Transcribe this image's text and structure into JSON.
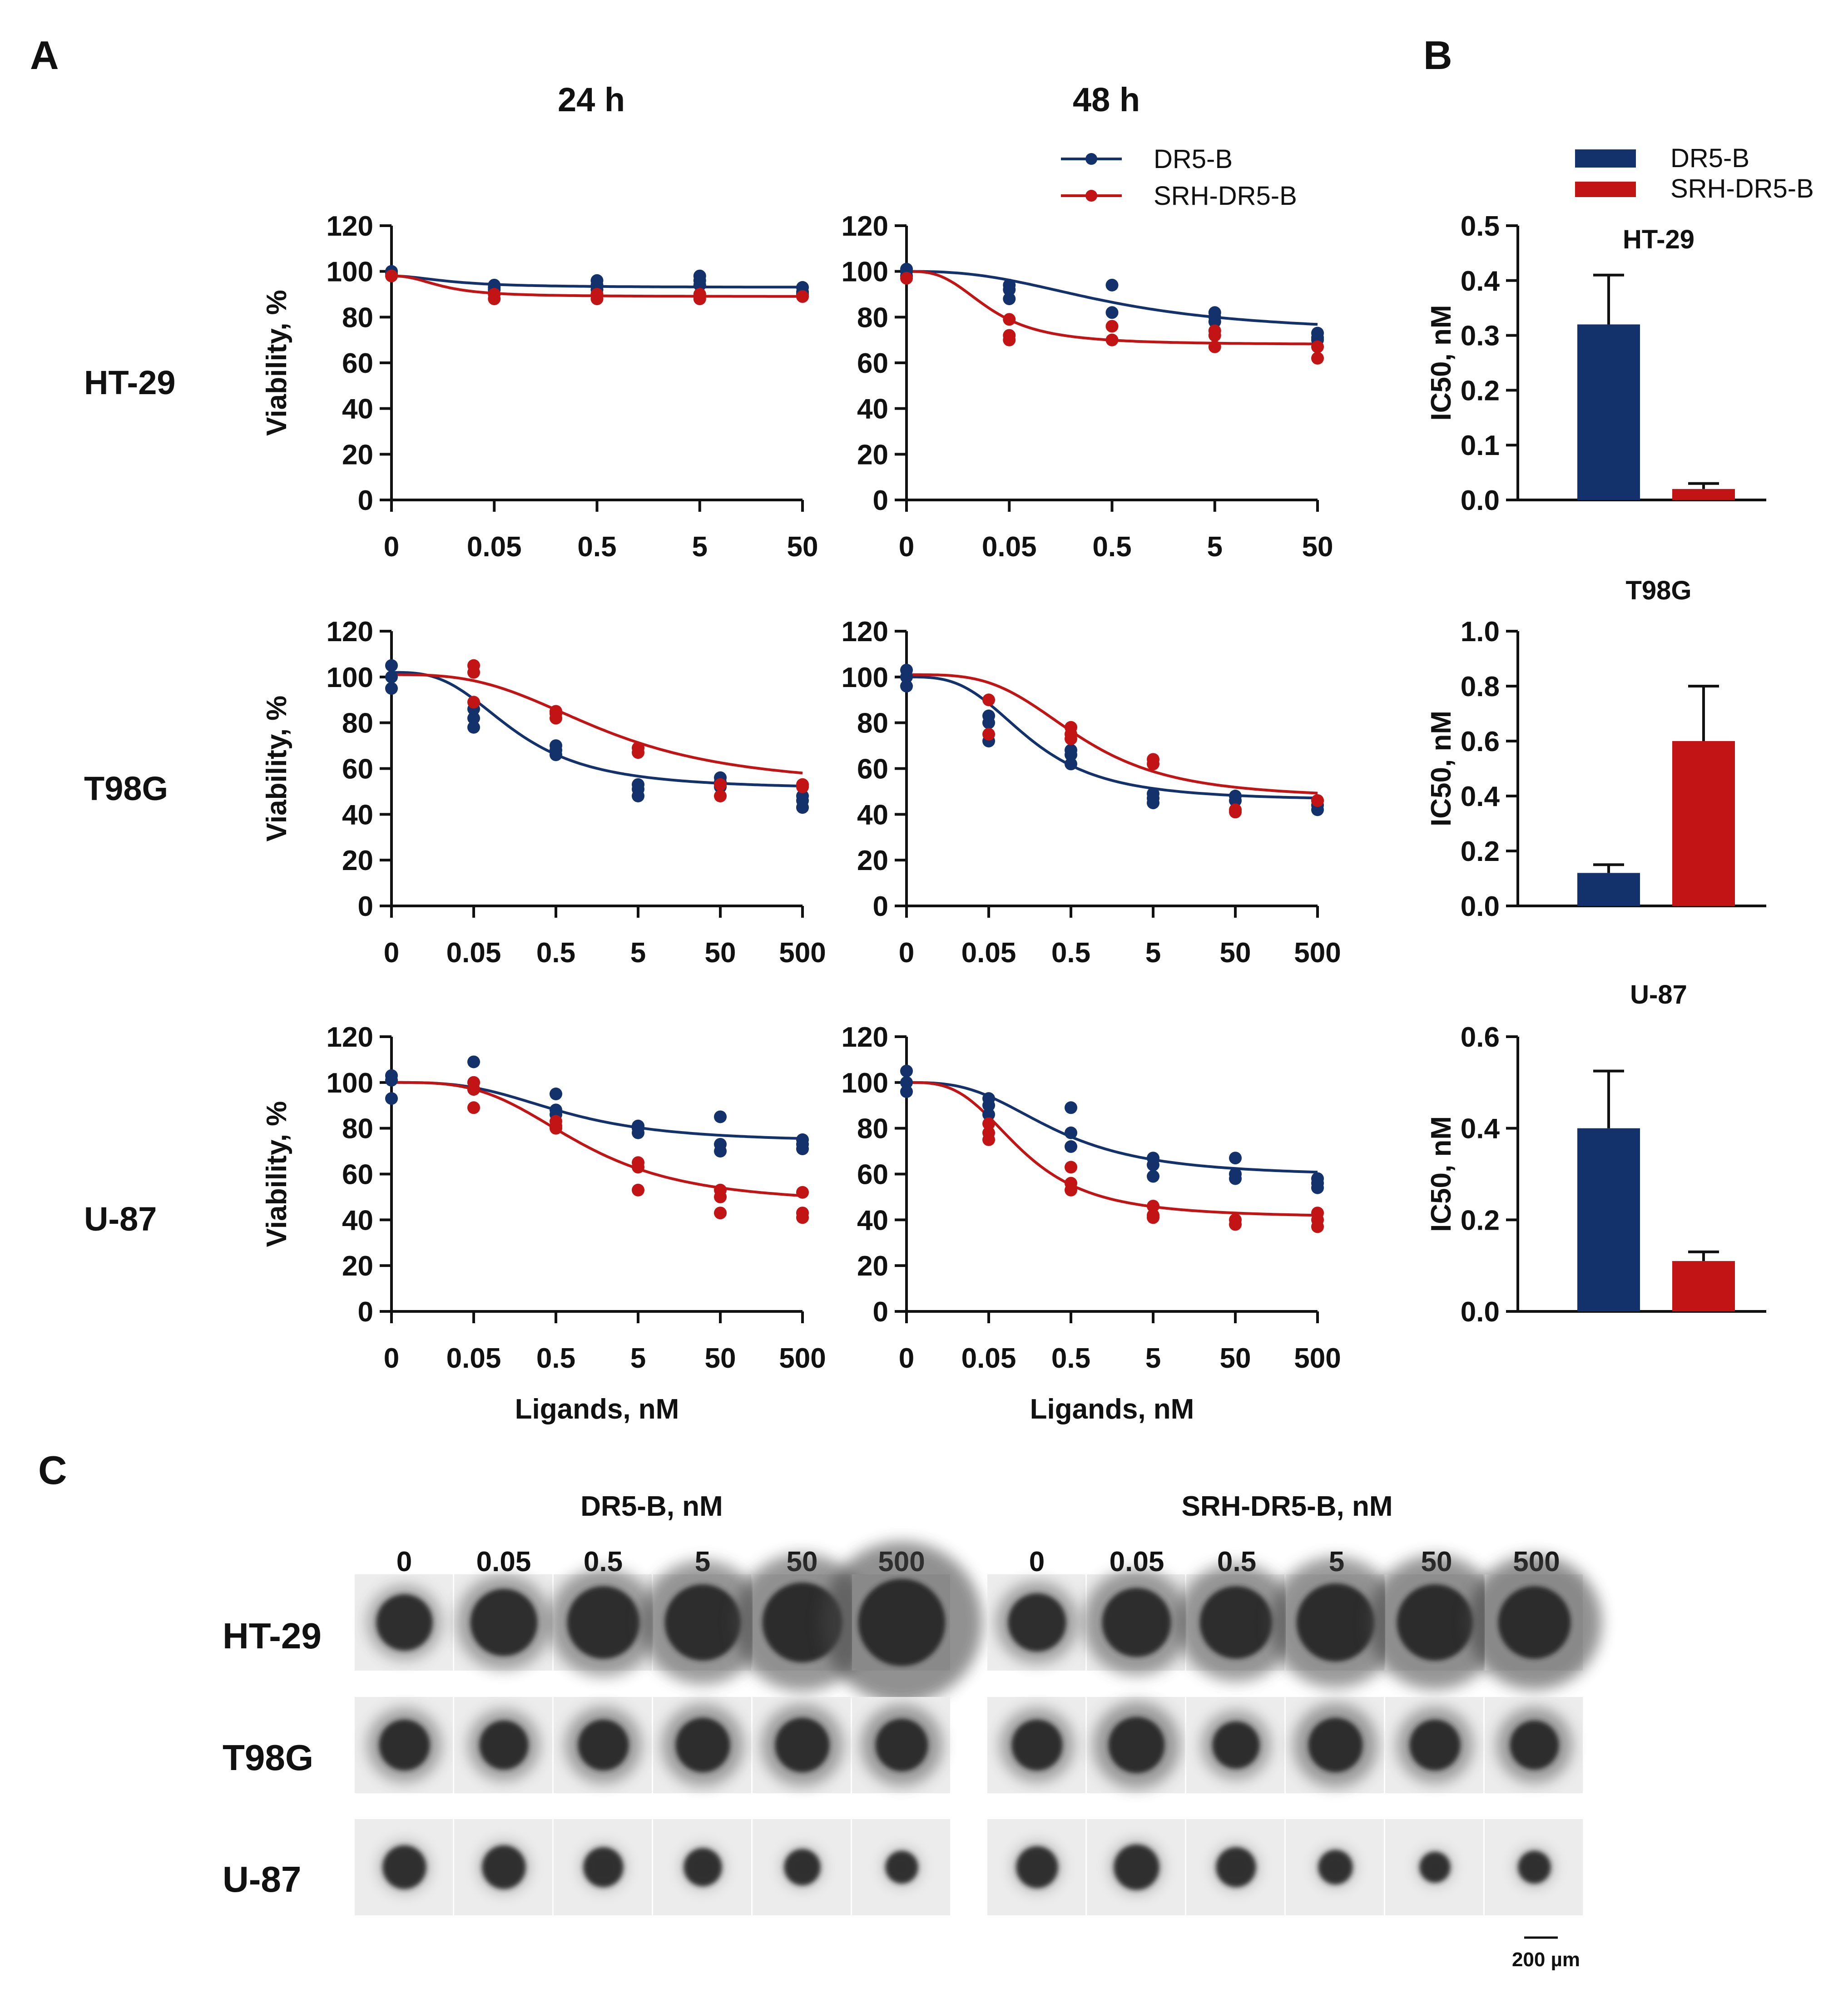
{
  "panel_labels": {
    "a": "A",
    "b": "B",
    "c": "C"
  },
  "column_titles": [
    "24 h",
    "48 h"
  ],
  "row_labels": [
    "HT-29",
    "T98G",
    "U-87"
  ],
  "legend": {
    "series": [
      "DR5-B",
      "SRH-DR5-B"
    ]
  },
  "colors": {
    "dr5b": "#13326b",
    "srh": "#c21414",
    "axis": "#111111"
  },
  "chart_data": [
    {
      "type": "scatter",
      "id": "ht29-24h",
      "cell_line": "HT-29",
      "timepoint": "24 h",
      "xlabel": "",
      "ylabel": "Viability, %",
      "ylim": [
        0,
        120
      ],
      "yticks": [
        0,
        20,
        40,
        60,
        80,
        100,
        120
      ],
      "xticks": [
        "0",
        "0.05",
        "0.5",
        "5",
        "50"
      ],
      "series": [
        {
          "name": "DR5-B",
          "points": [
            [
              0,
              100
            ],
            [
              0,
              99
            ],
            [
              1,
              94
            ],
            [
              1,
              93
            ],
            [
              1,
              92
            ],
            [
              2,
              96
            ],
            [
              2,
              94
            ],
            [
              2,
              92
            ],
            [
              3,
              98
            ],
            [
              3,
              96
            ],
            [
              3,
              94
            ],
            [
              4,
              93
            ],
            [
              4,
              91
            ],
            [
              4,
              90
            ]
          ],
          "fit": {
            "top": 98,
            "bottom": 93,
            "mid": 0.6,
            "slope": 1.0
          }
        },
        {
          "name": "SRH-DR5-B",
          "points": [
            [
              0,
              98
            ],
            [
              1,
              90
            ],
            [
              1,
              88
            ],
            [
              2,
              90
            ],
            [
              2,
              88
            ],
            [
              3,
              90
            ],
            [
              3,
              88
            ],
            [
              4,
              89
            ]
          ],
          "fit": {
            "top": 98,
            "bottom": 89,
            "mid": 0.5,
            "slope": 1.2
          }
        }
      ]
    },
    {
      "type": "scatter",
      "id": "ht29-48h",
      "cell_line": "HT-29",
      "timepoint": "48 h",
      "xlabel": "",
      "ylabel": "",
      "ylim": [
        0,
        120
      ],
      "yticks": [
        0,
        20,
        40,
        60,
        80,
        100,
        120
      ],
      "xticks": [
        "0",
        "0.05",
        "0.5",
        "5",
        "50"
      ],
      "series": [
        {
          "name": "DR5-B",
          "points": [
            [
              0,
              101
            ],
            [
              0,
              100
            ],
            [
              0,
              98
            ],
            [
              1,
              94
            ],
            [
              1,
              92
            ],
            [
              1,
              88
            ],
            [
              2,
              94
            ],
            [
              2,
              82
            ],
            [
              3,
              82
            ],
            [
              3,
              80
            ],
            [
              3,
              78
            ],
            [
              4,
              73
            ],
            [
              4,
              71
            ],
            [
              4,
              70
            ]
          ],
          "fit": {
            "top": 100,
            "bottom": 73,
            "mid": 2.0,
            "slope": 1.3
          }
        },
        {
          "name": "SRH-DR5-B",
          "points": [
            [
              0,
              97
            ],
            [
              1,
              79
            ],
            [
              1,
              72
            ],
            [
              1,
              70
            ],
            [
              2,
              76
            ],
            [
              2,
              70
            ],
            [
              3,
              74
            ],
            [
              3,
              72
            ],
            [
              3,
              67
            ],
            [
              4,
              67
            ],
            [
              4,
              62
            ]
          ],
          "fit": {
            "top": 100,
            "bottom": 68,
            "mid": 0.8,
            "slope": 1.5
          }
        }
      ]
    },
    {
      "type": "scatter",
      "id": "t98g-24h",
      "cell_line": "T98G",
      "timepoint": "24 h",
      "xlabel": "",
      "ylabel": "Viability, %",
      "ylim": [
        0,
        120
      ],
      "yticks": [
        0,
        20,
        40,
        60,
        80,
        100,
        120
      ],
      "xticks": [
        "0",
        "0.05",
        "0.5",
        "5",
        "50",
        "500"
      ],
      "series": [
        {
          "name": "DR5-B",
          "points": [
            [
              0,
              105
            ],
            [
              0,
              100
            ],
            [
              0,
              95
            ],
            [
              1,
              86
            ],
            [
              1,
              82
            ],
            [
              1,
              78
            ],
            [
              2,
              70
            ],
            [
              2,
              68
            ],
            [
              2,
              66
            ],
            [
              3,
              53
            ],
            [
              3,
              51
            ],
            [
              3,
              48
            ],
            [
              4,
              56
            ],
            [
              4,
              54
            ],
            [
              4,
              52
            ],
            [
              5,
              48
            ],
            [
              5,
              46
            ],
            [
              5,
              43
            ]
          ],
          "fit": {
            "top": 102,
            "bottom": 51,
            "mid": 1.5,
            "slope": 1.5
          }
        },
        {
          "name": "SRH-DR5-B",
          "points": [
            [
              1,
              105
            ],
            [
              1,
              102
            ],
            [
              1,
              89
            ],
            [
              2,
              85
            ],
            [
              2,
              84
            ],
            [
              2,
              82
            ],
            [
              3,
              69
            ],
            [
              3,
              67
            ],
            [
              4,
              53
            ],
            [
              4,
              48
            ],
            [
              5,
              53
            ],
            [
              5,
              52
            ]
          ],
          "fit": {
            "top": 101,
            "bottom": 52,
            "mid": 2.6,
            "slope": 1.5
          }
        }
      ]
    },
    {
      "type": "scatter",
      "id": "t98g-48h",
      "cell_line": "T98G",
      "timepoint": "48 h",
      "xlabel": "",
      "ylabel": "",
      "ylim": [
        0,
        120
      ],
      "yticks": [
        0,
        20,
        40,
        60,
        80,
        100,
        120
      ],
      "xticks": [
        "0",
        "0.05",
        "0.5",
        "5",
        "50",
        "500"
      ],
      "series": [
        {
          "name": "DR5-B",
          "points": [
            [
              0,
              103
            ],
            [
              0,
              100
            ],
            [
              0,
              96
            ],
            [
              1,
              83
            ],
            [
              1,
              80
            ],
            [
              1,
              72
            ],
            [
              2,
              68
            ],
            [
              2,
              66
            ],
            [
              2,
              62
            ],
            [
              3,
              49
            ],
            [
              3,
              47
            ],
            [
              3,
              45
            ],
            [
              4,
              48
            ],
            [
              4,
              46
            ],
            [
              5,
              46
            ],
            [
              5,
              44
            ],
            [
              5,
              42
            ]
          ],
          "fit": {
            "top": 100,
            "bottom": 46,
            "mid": 1.5,
            "slope": 1.6
          }
        },
        {
          "name": "SRH-DR5-B",
          "points": [
            [
              1,
              90
            ],
            [
              1,
              75
            ],
            [
              2,
              78
            ],
            [
              2,
              75
            ],
            [
              2,
              73
            ],
            [
              3,
              64
            ],
            [
              3,
              62
            ],
            [
              4,
              42
            ],
            [
              4,
              41
            ],
            [
              5,
              46
            ]
          ],
          "fit": {
            "top": 101,
            "bottom": 47,
            "mid": 2.1,
            "slope": 1.8
          }
        }
      ]
    },
    {
      "type": "scatter",
      "id": "u87-24h",
      "cell_line": "U-87",
      "timepoint": "24 h",
      "xlabel": "Ligands, nM",
      "ylabel": "Viability, %",
      "ylim": [
        0,
        120
      ],
      "yticks": [
        0,
        20,
        40,
        60,
        80,
        100,
        120
      ],
      "xticks": [
        "0",
        "0.05",
        "0.5",
        "5",
        "50",
        "500"
      ],
      "series": [
        {
          "name": "DR5-B",
          "points": [
            [
              0,
              103
            ],
            [
              0,
              101
            ],
            [
              0,
              93
            ],
            [
              1,
              109
            ],
            [
              1,
              100
            ],
            [
              1,
              97
            ],
            [
              2,
              95
            ],
            [
              2,
              88
            ],
            [
              2,
              86
            ],
            [
              3,
              81
            ],
            [
              3,
              80
            ],
            [
              3,
              78
            ],
            [
              4,
              85
            ],
            [
              4,
              73
            ],
            [
              4,
              70
            ],
            [
              5,
              75
            ],
            [
              5,
              73
            ],
            [
              5,
              71
            ]
          ],
          "fit": {
            "top": 100,
            "bottom": 74,
            "mid": 2.1,
            "slope": 1.6
          }
        },
        {
          "name": "SRH-DR5-B",
          "points": [
            [
              1,
              100
            ],
            [
              1,
              97
            ],
            [
              1,
              89
            ],
            [
              2,
              83
            ],
            [
              2,
              81
            ],
            [
              2,
              80
            ],
            [
              3,
              65
            ],
            [
              3,
              63
            ],
            [
              3,
              53
            ],
            [
              4,
              53
            ],
            [
              4,
              50
            ],
            [
              4,
              43
            ],
            [
              5,
              52
            ],
            [
              5,
              43
            ],
            [
              5,
              41
            ]
          ],
          "fit": {
            "top": 100,
            "bottom": 47,
            "mid": 2.3,
            "slope": 1.7
          }
        }
      ]
    },
    {
      "type": "scatter",
      "id": "u87-48h",
      "cell_line": "U-87",
      "timepoint": "48 h",
      "xlabel": "Ligands, nM",
      "ylabel": "",
      "ylim": [
        0,
        120
      ],
      "yticks": [
        0,
        20,
        40,
        60,
        80,
        100,
        120
      ],
      "xticks": [
        "0",
        "0.05",
        "0.5",
        "5",
        "50",
        "500"
      ],
      "series": [
        {
          "name": "DR5-B",
          "points": [
            [
              0,
              105
            ],
            [
              0,
              100
            ],
            [
              0,
              96
            ],
            [
              1,
              93
            ],
            [
              1,
              90
            ],
            [
              1,
              86
            ],
            [
              2,
              89
            ],
            [
              2,
              78
            ],
            [
              2,
              72
            ],
            [
              3,
              67
            ],
            [
              3,
              64
            ],
            [
              3,
              59
            ],
            [
              4,
              67
            ],
            [
              4,
              60
            ],
            [
              4,
              58
            ],
            [
              5,
              58
            ],
            [
              5,
              56
            ],
            [
              5,
              54
            ]
          ],
          "fit": {
            "top": 100,
            "bottom": 59,
            "mid": 1.8,
            "slope": 1.5
          }
        },
        {
          "name": "SRH-DR5-B",
          "points": [
            [
              1,
              82
            ],
            [
              1,
              78
            ],
            [
              1,
              75
            ],
            [
              2,
              63
            ],
            [
              2,
              56
            ],
            [
              2,
              53
            ],
            [
              3,
              46
            ],
            [
              3,
              42
            ],
            [
              3,
              41
            ],
            [
              4,
              40
            ],
            [
              4,
              38
            ],
            [
              5,
              43
            ],
            [
              5,
              40
            ],
            [
              5,
              37
            ]
          ],
          "fit": {
            "top": 100,
            "bottom": 41,
            "mid": 1.4,
            "slope": 1.6
          }
        }
      ]
    },
    {
      "type": "bar",
      "id": "ic50-ht29",
      "title": "HT-29",
      "ylabel": "IC50, nM",
      "categories": [
        "DR5-B",
        "SRH-DR5-B"
      ],
      "values": [
        0.32,
        0.02
      ],
      "errors": [
        0.09,
        0.01
      ],
      "ylim": [
        0,
        0.5
      ],
      "yticks": [
        "0.0",
        "0.1",
        "0.2",
        "0.3",
        "0.4",
        "0.5"
      ]
    },
    {
      "type": "bar",
      "id": "ic50-t98g",
      "title": "T98G",
      "ylabel": "IC50, nM",
      "categories": [
        "DR5-B",
        "SRH-DR5-B"
      ],
      "values": [
        0.12,
        0.6
      ],
      "errors": [
        0.03,
        0.2
      ],
      "ylim": [
        0,
        1.0
      ],
      "yticks": [
        "0.0",
        "0.2",
        "0.4",
        "0.6",
        "0.8",
        "1.0"
      ]
    },
    {
      "type": "bar",
      "id": "ic50-u87",
      "title": "U-87",
      "ylabel": "IC50, nM",
      "categories": [
        "DR5-B",
        "SRH-DR5-B"
      ],
      "values": [
        0.4,
        0.11
      ],
      "errors": [
        0.125,
        0.02
      ],
      "ylim": [
        0,
        0.6
      ],
      "yticks": [
        "0.0",
        "0.2",
        "0.4",
        "0.6"
      ]
    }
  ],
  "spheroids": {
    "group_titles": [
      "DR5-B, nM",
      "SRH-DR5-B, nM"
    ],
    "concentrations": [
      "0",
      "0.05",
      "0.5",
      "5",
      "50",
      "500"
    ],
    "row_labels": [
      "HT-29",
      "T98G",
      "U-87"
    ],
    "scale_bar": "200 µm"
  }
}
